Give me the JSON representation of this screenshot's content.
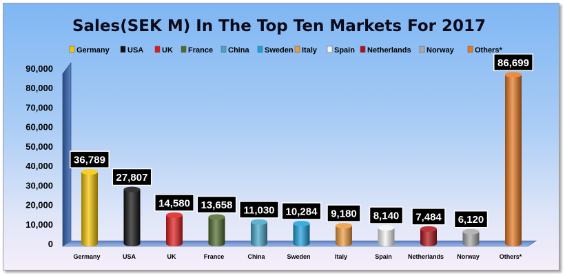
{
  "chart_data": {
    "type": "bar",
    "title": "Sales(SEK M) In The Top Ten Markets For 2017",
    "xlabel": "",
    "ylabel": "",
    "ylim": [
      0,
      90000
    ],
    "yticks": [
      "0",
      "10,000",
      "20,000",
      "30,000",
      "40,000",
      "50,000",
      "60,000",
      "70,000",
      "80,000",
      "90,000"
    ],
    "legend_position": "top",
    "grid": false,
    "categories": [
      "Germany",
      "USA",
      "UK",
      "France",
      "China",
      "Sweden",
      "Italy",
      "Spain",
      "Netherlands",
      "Norway",
      "Others*"
    ],
    "values": [
      36789,
      27807,
      14580,
      13658,
      11030,
      10284,
      9180,
      8140,
      7484,
      6120,
      86699
    ],
    "data_labels": [
      "36,789",
      "27,807",
      "14,580",
      "13,658",
      "11,030",
      "10,284",
      "9,180",
      "8,140",
      "7,484",
      "6,120",
      "86,699"
    ],
    "colors": [
      "#f5c400",
      "#111111",
      "#e01a1a",
      "#4f6b2a",
      "#44a6c8",
      "#1aa0dc",
      "#ee9a3c",
      "#f4f4f4",
      "#b01018",
      "#a8a8a8",
      "#e87820"
    ]
  }
}
